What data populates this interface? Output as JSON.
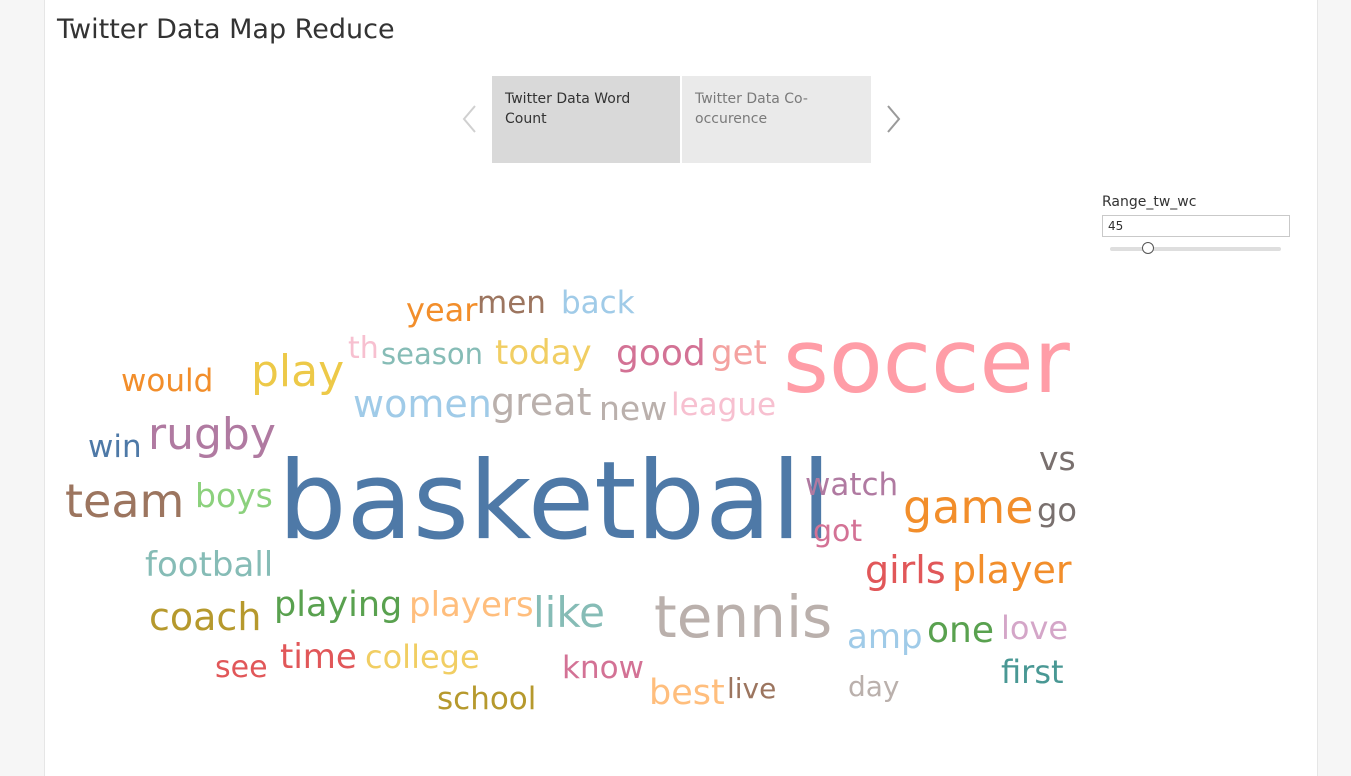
{
  "title": "Twitter Data Map Reduce",
  "story_points": [
    {
      "label": "Twitter Data Word Count",
      "active": true
    },
    {
      "label": "Twitter Data Co-occurence",
      "active": false
    }
  ],
  "parameter": {
    "label": "Range_tw_wc",
    "value": "45",
    "slider_fraction": 0.22
  },
  "word_cloud": [
    {
      "text": "basketball",
      "color": "#4e79a7"
    },
    {
      "text": "soccer",
      "color": "#ff9da7"
    },
    {
      "text": "tennis",
      "color": "#bab0ac"
    },
    {
      "text": "team",
      "color": "#9c755f"
    },
    {
      "text": "rugby",
      "color": "#b07aa1"
    },
    {
      "text": "game",
      "color": "#f28e2b"
    },
    {
      "text": "play",
      "color": "#edc948"
    },
    {
      "text": "women",
      "color": "#a0cbe8"
    },
    {
      "text": "great",
      "color": "#bab0ac"
    },
    {
      "text": "coach",
      "color": "#b6992d"
    },
    {
      "text": "like",
      "color": "#86bcb6"
    },
    {
      "text": "player",
      "color": "#f28e2b"
    },
    {
      "text": "girls",
      "color": "#e15759"
    },
    {
      "text": "good",
      "color": "#d37295"
    },
    {
      "text": "today",
      "color": "#f1ce63"
    },
    {
      "text": "get",
      "color": "#f4a2a0"
    },
    {
      "text": "watch",
      "color": "#b07aa1"
    },
    {
      "text": "playing",
      "color": "#59a14f"
    },
    {
      "text": "players",
      "color": "#ffbe7d"
    },
    {
      "text": "one",
      "color": "#59a14f"
    },
    {
      "text": "football",
      "color": "#86bcb6"
    },
    {
      "text": "boys",
      "color": "#8cd17d"
    },
    {
      "text": "new",
      "color": "#bab0ac"
    },
    {
      "text": "league",
      "color": "#f7c0d0"
    },
    {
      "text": "vs",
      "color": "#79706e"
    },
    {
      "text": "go",
      "color": "#79706e"
    },
    {
      "text": "amp",
      "color": "#a0cbe8"
    },
    {
      "text": "love",
      "color": "#d4a6c8"
    },
    {
      "text": "time",
      "color": "#e15759"
    },
    {
      "text": "college",
      "color": "#f1ce63"
    },
    {
      "text": "season",
      "color": "#86bcb6"
    },
    {
      "text": "back",
      "color": "#a0cbe8"
    },
    {
      "text": "men",
      "color": "#9c755f"
    },
    {
      "text": "year",
      "color": "#f28e2b"
    },
    {
      "text": "would",
      "color": "#f28e2b"
    },
    {
      "text": "win",
      "color": "#4e79a7"
    },
    {
      "text": "th",
      "color": "#f7c0d0"
    },
    {
      "text": "got",
      "color": "#d37295"
    },
    {
      "text": "know",
      "color": "#d37295"
    },
    {
      "text": "first",
      "color": "#499894"
    },
    {
      "text": "best",
      "color": "#ffbe7d"
    },
    {
      "text": "live",
      "color": "#9c755f"
    },
    {
      "text": "day",
      "color": "#bab0ac"
    },
    {
      "text": "see",
      "color": "#e15759"
    },
    {
      "text": "school",
      "color": "#b6992d"
    }
  ]
}
